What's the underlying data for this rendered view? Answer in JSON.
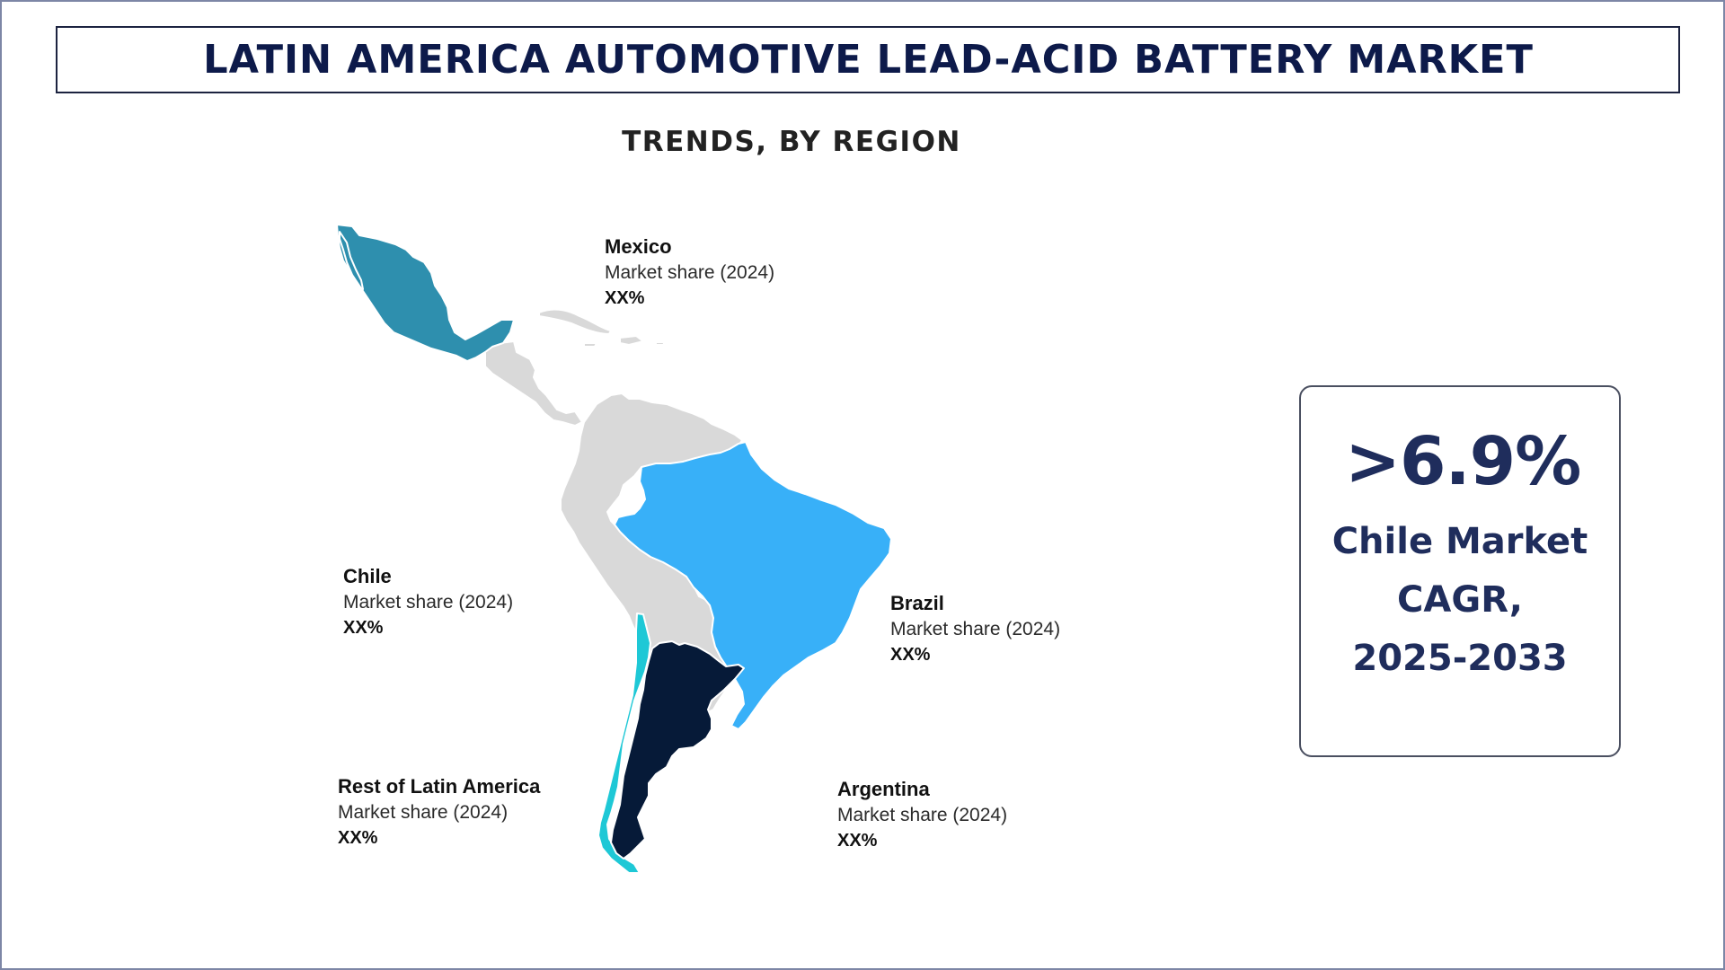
{
  "header": {
    "title": "LATIN AMERICA AUTOMOTIVE LEAD-ACID BATTERY MARKET",
    "subtitle": "TRENDS, BY REGION"
  },
  "colors": {
    "mexico": "#2e8fae",
    "brazil": "#38b0f8",
    "chile": "#1ec8d6",
    "argentina": "#061a38",
    "rest": "#d9d9d9",
    "accent_text": "#1f2d5c"
  },
  "regions": [
    {
      "id": "mexico",
      "name": "Mexico",
      "metric": "Market share (2024)",
      "value": "XX%"
    },
    {
      "id": "chile",
      "name": "Chile",
      "metric": "Market share (2024)",
      "value": "XX%"
    },
    {
      "id": "brazil",
      "name": "Brazil",
      "metric": "Market share (2024)",
      "value": "XX%"
    },
    {
      "id": "rest",
      "name": "Rest of Latin America",
      "metric": "Market share (2024)",
      "value": "XX%"
    },
    {
      "id": "argentina",
      "name": "Argentina",
      "metric": "Market share (2024)",
      "value": "XX%"
    }
  ],
  "highlight": {
    "value": ">6.9%",
    "line1": "Chile Market",
    "line2": "CAGR,",
    "line3": "2025-2033"
  }
}
